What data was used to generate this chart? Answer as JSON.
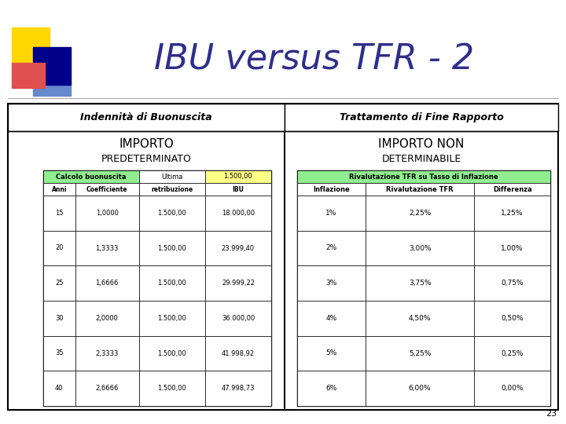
{
  "title": "IBU versus TFR - 2",
  "title_color": "#2E2E8B",
  "title_fontsize": 32,
  "background_color": "#FFFFFF",
  "left_header": "Indennità di Buonuscita",
  "right_header": "Trattamento di Fine Rapporto",
  "left_table_header_row": [
    "Calcolo buonuscita",
    "Ultima",
    "1.500,00"
  ],
  "left_table_header_row2": [
    "Anni",
    "Coefficiente",
    "retribuzione",
    "IBU"
  ],
  "left_table_data": [
    [
      "15",
      "1,0000",
      "1.500,00",
      "18.000,00"
    ],
    [
      "20",
      "1,3333",
      "1.500,00",
      "23.999,40"
    ],
    [
      "25",
      "1,6666",
      "1.500,00",
      "29.999,22"
    ],
    [
      "30",
      "2,0000",
      "1.500,00",
      "36.000,00"
    ],
    [
      "35",
      "2,3333",
      "1.500,00",
      "41.998,92"
    ],
    [
      "40",
      "2,6666",
      "1.500,00",
      "47.998,73"
    ]
  ],
  "right_table_title": "Rivalutazione TFR su Tasso di Inflazione",
  "right_table_header": [
    "Inflazione",
    "Rivalutazione TFR",
    "Differenza"
  ],
  "right_table_data": [
    [
      "1%",
      "2,25%",
      "1,25%"
    ],
    [
      "2%",
      "3,00%",
      "1,00%"
    ],
    [
      "3%",
      "3,75%",
      "0,75%"
    ],
    [
      "4%",
      "4,50%",
      "0,50%"
    ],
    [
      "5%",
      "5,25%",
      "0,25%"
    ],
    [
      "6%",
      "6,00%",
      "0,00%"
    ]
  ],
  "slide_number": "23",
  "logo_colors": {
    "yellow": "#FFD700",
    "red": "#E05050",
    "blue_dark": "#00008B",
    "blue_light": "#6688CC"
  },
  "green_header": "#90EE90",
  "yellow_cell": "#FFFF88"
}
